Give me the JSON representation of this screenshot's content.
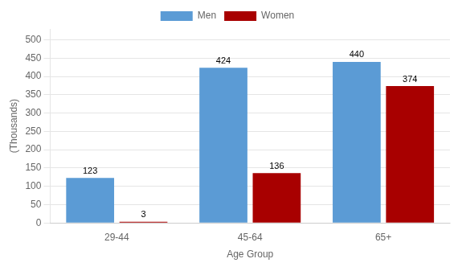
{
  "chart_data": {
    "type": "bar",
    "xlabel": "Age Group",
    "ylabel": "(Thousands)",
    "categories": [
      "29-44",
      "45-64",
      "65+"
    ],
    "series": [
      {
        "name": "Men",
        "color": "#5B9BD5",
        "values": [
          123,
          424,
          440
        ]
      },
      {
        "name": "Women",
        "color": "#A80000",
        "values": [
          3,
          136,
          374
        ]
      }
    ],
    "ylim": [
      0,
      530
    ],
    "yticks": [
      0,
      50,
      100,
      150,
      200,
      250,
      300,
      350,
      400,
      450,
      500
    ],
    "grid": true,
    "legend": "top",
    "data_labels": true
  }
}
